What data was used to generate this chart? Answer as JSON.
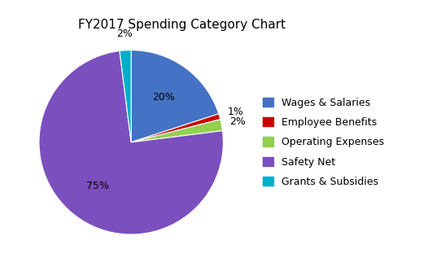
{
  "title": "FY2017 Spending Category Chart",
  "categories": [
    "Wages & Salaries",
    "Employee Benefits",
    "Operating Expenses",
    "Safety Net",
    "Grants & Subsidies"
  ],
  "values": [
    20,
    1,
    2,
    75,
    2
  ],
  "colors": [
    "#4472C4",
    "#CC0000",
    "#92D050",
    "#7B4FBE",
    "#00B0C8"
  ],
  "labels": [
    "20%",
    "1%",
    "2%",
    "75%",
    "2%"
  ],
  "startangle": 90,
  "title_fontsize": 11,
  "label_fontsize": 9,
  "legend_fontsize": 9
}
